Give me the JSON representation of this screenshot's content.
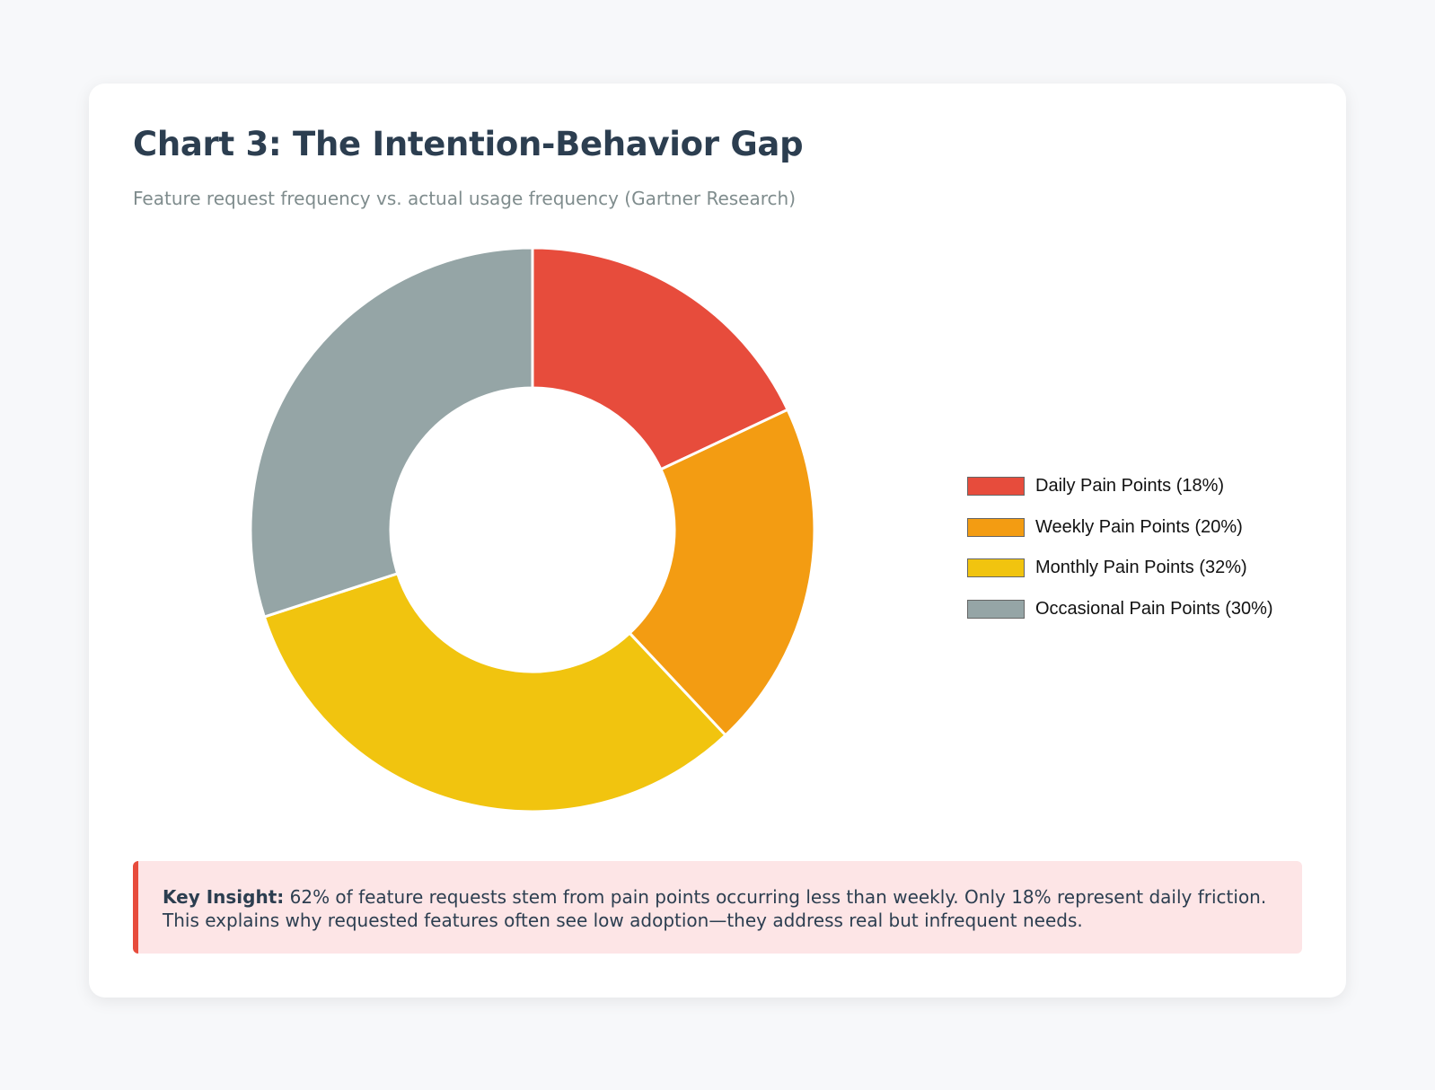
{
  "card": {
    "title": "Chart 3: The Intention-Behavior Gap",
    "subtitle": "Feature request frequency vs. actual usage frequency (Gartner Research)"
  },
  "chart_data": {
    "type": "pie",
    "variant": "doughnut",
    "categories": [
      "Daily Pain Points (18%)",
      "Weekly Pain Points (20%)",
      "Monthly Pain Points (32%)",
      "Occasional Pain Points (30%)"
    ],
    "values": [
      18,
      20,
      32,
      30
    ],
    "colors": [
      "#e74c3c",
      "#f39c12",
      "#f1c40f",
      "#95a5a6"
    ],
    "legend_position": "right"
  },
  "insight": {
    "label": "Key Insight:",
    "text": " 62% of feature requests stem from pain points occurring less than weekly. Only 18% represent daily friction. This explains why requested features often see low adoption—they address real but infrequent needs."
  }
}
